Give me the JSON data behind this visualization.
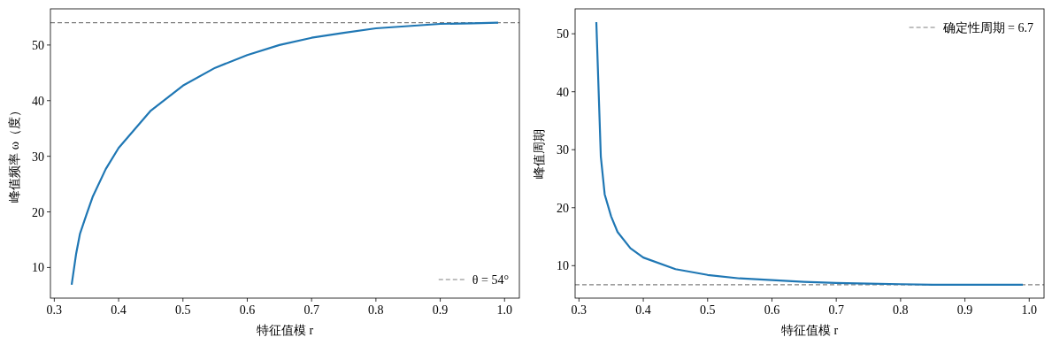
{
  "chart_data": [
    {
      "type": "line",
      "xlabel": "特征值模 r",
      "ylabel": "峰值频率 ω（度）",
      "x": [
        0.327,
        0.334,
        0.34,
        0.35,
        0.36,
        0.38,
        0.4,
        0.45,
        0.5,
        0.55,
        0.6,
        0.65,
        0.7,
        0.75,
        0.8,
        0.85,
        0.9,
        0.95,
        0.99
      ],
      "series": [
        {
          "color": "#1f77b4",
          "values": [
            6.9,
            12.5,
            16.1,
            19.5,
            22.8,
            27.7,
            31.5,
            38.2,
            42.7,
            45.9,
            48.2,
            50.0,
            51.3,
            52.2,
            53.0,
            53.4,
            53.8,
            53.9,
            54.0
          ]
        }
      ],
      "xlim": [
        0.294,
        1.023
      ],
      "ylim": [
        4.5,
        56.5
      ],
      "xticks": [
        0.3,
        0.4,
        0.5,
        0.6,
        0.7,
        0.8,
        0.9,
        {
          "value": 1.0,
          "label": "1.0"
        }
      ],
      "yticks": [
        10,
        20,
        30,
        40,
        50
      ],
      "ref_lines": [
        {
          "axis": "y",
          "value": 54,
          "label": "θ = 54°",
          "color": "#808080",
          "line_style": "dashed"
        }
      ],
      "legend": "bottom right",
      "grid": false
    },
    {
      "type": "line",
      "xlabel": "特征值模 r",
      "ylabel": "峰值周期",
      "x": [
        0.327,
        0.334,
        0.34,
        0.35,
        0.36,
        0.38,
        0.4,
        0.45,
        0.5,
        0.55,
        0.6,
        0.65,
        0.7,
        0.75,
        0.8,
        0.85,
        0.9,
        0.95,
        0.99
      ],
      "series": [
        {
          "color": "#1f77b4",
          "values": [
            52.0,
            28.8,
            22.3,
            18.5,
            15.8,
            13.0,
            11.4,
            9.4,
            8.4,
            7.8,
            7.5,
            7.2,
            7.0,
            6.9,
            6.8,
            6.7,
            6.7,
            6.7,
            6.7
          ]
        }
      ],
      "xlim": [
        0.294,
        1.023
      ],
      "ylim": [
        4.4,
        54.3
      ],
      "xticks": [
        0.3,
        0.4,
        0.5,
        0.6,
        0.7,
        0.8,
        0.9,
        {
          "value": 1.0,
          "label": "1.0"
        }
      ],
      "yticks": [
        10,
        20,
        30,
        40,
        50
      ],
      "ref_lines": [
        {
          "axis": "y",
          "value": 6.7,
          "label": "确定性周期 = 6.7",
          "color": "#808080",
          "line_style": "dashed"
        }
      ],
      "legend": "top right",
      "grid": false
    }
  ]
}
